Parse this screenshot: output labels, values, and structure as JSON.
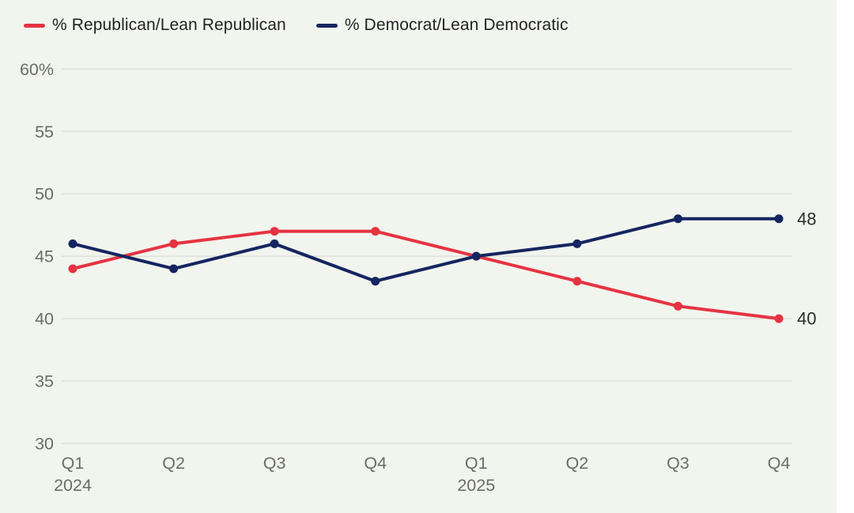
{
  "chart_data": {
    "type": "line",
    "title": "",
    "x_tick_labels": [
      "Q1",
      "Q2",
      "Q3",
      "Q4",
      "Q1",
      "Q2",
      "Q3",
      "Q4"
    ],
    "x_year_labels": {
      "0": "2024",
      "4": "2025"
    },
    "x_categories": [
      "Q1 2024",
      "Q2 2024",
      "Q3 2024",
      "Q4 2024",
      "Q1 2025",
      "Q2 2025",
      "Q3 2025",
      "Q4 2025"
    ],
    "y_tick_labels": [
      "60%",
      "55",
      "50",
      "45",
      "40",
      "35",
      "30"
    ],
    "y_tick_values": [
      60,
      55,
      50,
      45,
      40,
      35,
      30
    ],
    "ylim": [
      30,
      60
    ],
    "grid": true,
    "legend_position": "top-left",
    "series": [
      {
        "name": "% Republican/Lean Republican",
        "color": "#e63341",
        "values": [
          44,
          46,
          47,
          47,
          45,
          43,
          41,
          40
        ],
        "end_label": "40"
      },
      {
        "name": "% Democrat/Lean Democratic",
        "color": "#152561",
        "values": [
          46,
          44,
          46,
          43,
          45,
          46,
          48,
          48
        ],
        "end_label": "48"
      }
    ],
    "colors": {
      "background": "#f1f5ee",
      "gridline": "#dde2d8",
      "axis_text": "#686e66",
      "end_label_text": "#2b2e2b"
    }
  }
}
